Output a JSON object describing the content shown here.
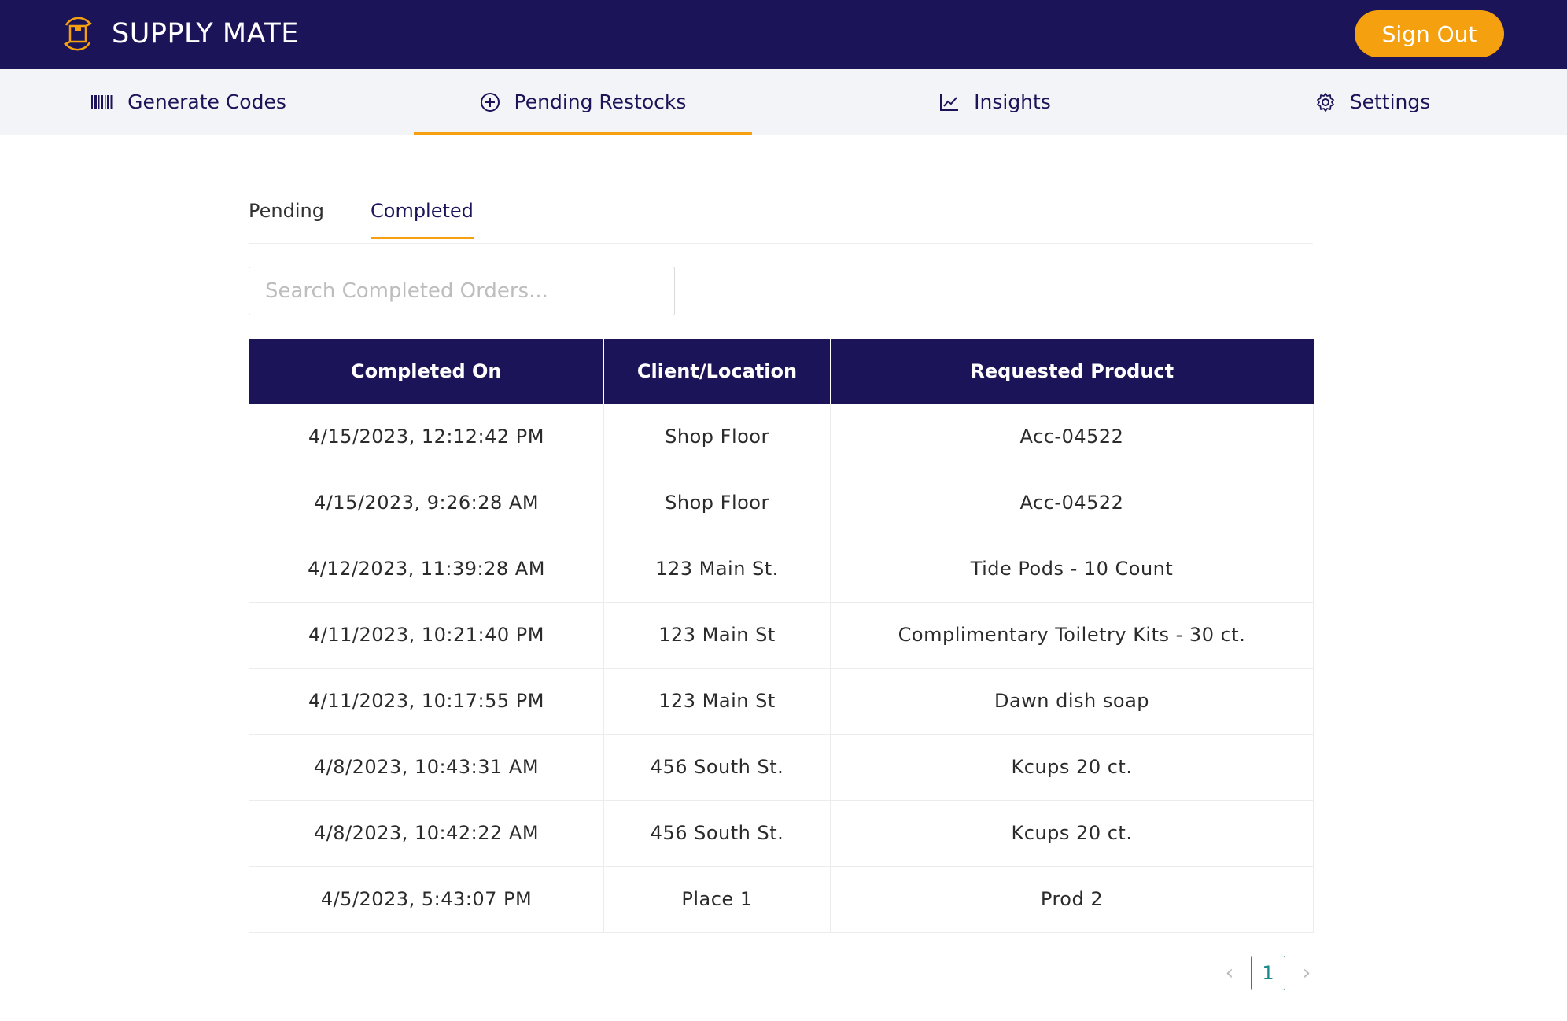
{
  "app": {
    "name": "SUPPLY MATE",
    "logo_icon": "box-cycle-icon",
    "accent": "#f5a10f",
    "brand_color": "#1c1459"
  },
  "header": {
    "sign_out_label": "Sign Out"
  },
  "nav": {
    "items": [
      {
        "label": "Generate Codes",
        "icon": "barcode-icon"
      },
      {
        "label": "Pending Restocks",
        "icon": "plus-circle-icon",
        "active": true
      },
      {
        "label": "Insights",
        "icon": "line-chart-icon"
      },
      {
        "label": "Settings",
        "icon": "gear-icon"
      }
    ]
  },
  "subtabs": {
    "items": [
      {
        "label": "Pending"
      },
      {
        "label": "Completed",
        "active": true
      }
    ]
  },
  "search": {
    "placeholder": "Search Completed Orders...",
    "value": ""
  },
  "table": {
    "headers": [
      "Completed On",
      "Client/Location",
      "Requested Product"
    ],
    "rows": [
      [
        "4/15/2023, 12:12:42 PM",
        "Shop Floor",
        "Acc-04522"
      ],
      [
        "4/15/2023, 9:26:28 AM",
        "Shop Floor",
        "Acc-04522"
      ],
      [
        "4/12/2023, 11:39:28 AM",
        "123 Main St.",
        "Tide Pods - 10 Count"
      ],
      [
        "4/11/2023, 10:21:40 PM",
        "123 Main St",
        "Complimentary Toiletry Kits - 30 ct."
      ],
      [
        "4/11/2023, 10:17:55 PM",
        "123 Main St",
        "Dawn dish soap"
      ],
      [
        "4/8/2023, 10:43:31 AM",
        "456 South St.",
        "Kcups 20 ct."
      ],
      [
        "4/8/2023, 10:42:22 AM",
        "456 South St.",
        "Kcups 20 ct."
      ],
      [
        "4/5/2023, 5:43:07 PM",
        "Place 1",
        "Prod 2"
      ]
    ]
  },
  "pagination": {
    "current_page": "1",
    "prev_symbol": "‹",
    "next_symbol": "›"
  }
}
